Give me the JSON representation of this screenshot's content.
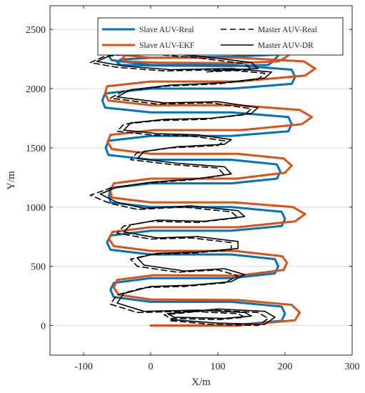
{
  "chart_data": {
    "type": "line",
    "xlabel": "X/m",
    "ylabel": "Y/m",
    "xlim": [
      -150,
      300
    ],
    "ylim": [
      -250,
      2700
    ],
    "xticks": [
      -100,
      0,
      100,
      200,
      300
    ],
    "yticks": [
      0,
      500,
      1000,
      1500,
      2000,
      2500
    ],
    "grid": "horizontal",
    "legend_position": "top-right",
    "legend": [
      "Slave AUV-Real",
      "Master AUV-Real",
      "Slave AUV-EKF",
      "Master AUV-DR"
    ],
    "series": [
      {
        "name": "Slave AUV-Real",
        "color": "#0072BD",
        "style": "solid-thick",
        "x": [
          0,
          120,
          195,
          200,
          195,
          120,
          0,
          -55,
          -60,
          -55,
          0,
          120,
          185,
          190,
          185,
          120,
          0,
          -60,
          -65,
          -60,
          0,
          120,
          195,
          200,
          195,
          120,
          0,
          -60,
          -62,
          -60,
          0,
          120,
          188,
          193,
          188,
          120,
          0,
          -63,
          -67,
          -63,
          0,
          120,
          205,
          210,
          205,
          120,
          0,
          -68,
          -72,
          -68,
          0,
          120,
          210,
          215,
          210,
          120,
          0,
          -58,
          -63,
          -58,
          0,
          120,
          200,
          205,
          200,
          120,
          0,
          -45,
          -50,
          -45,
          0,
          120,
          175,
          180,
          185,
          190,
          197
        ],
        "y": [
          0,
          0,
          40,
          100,
          160,
          200,
          200,
          240,
          300,
          360,
          400,
          400,
          440,
          500,
          560,
          600,
          600,
          640,
          700,
          760,
          800,
          800,
          840,
          900,
          960,
          1000,
          1000,
          1040,
          1100,
          1160,
          1200,
          1200,
          1240,
          1300,
          1360,
          1400,
          1400,
          1440,
          1500,
          1560,
          1600,
          1600,
          1640,
          1700,
          1760,
          1800,
          1800,
          1840,
          1900,
          1960,
          2000,
          2000,
          2040,
          2100,
          2160,
          2200,
          2200,
          2240,
          2280,
          2320,
          2350,
          2350,
          2330,
          2310,
          2290,
          2270,
          2260,
          2245,
          2220,
          2200,
          2195,
          2190,
          2200,
          2220,
          2250,
          2280,
          2310
        ]
      },
      {
        "name": "Slave AUV-EKF",
        "color": "#D95319",
        "style": "solid-thick",
        "x": [
          0,
          130,
          215,
          222,
          210,
          130,
          0,
          -48,
          -55,
          -50,
          5,
          130,
          198,
          203,
          196,
          125,
          0,
          -55,
          -62,
          -57,
          0,
          130,
          215,
          230,
          212,
          125,
          0,
          -58,
          -60,
          -55,
          0,
          128,
          200,
          210,
          198,
          130,
          0,
          -58,
          -64,
          -60,
          5,
          135,
          225,
          240,
          222,
          128,
          0,
          -63,
          -68,
          -65,
          0,
          130,
          230,
          245,
          228,
          130,
          0,
          -52,
          -58,
          -52,
          0,
          130,
          225,
          238,
          220,
          125,
          0,
          -38,
          -43,
          -38,
          10,
          130,
          190,
          200,
          210
        ],
        "y": [
          0,
          0,
          45,
          110,
          175,
          215,
          220,
          260,
          320,
          385,
          425,
          420,
          470,
          530,
          585,
          630,
          630,
          670,
          730,
          790,
          830,
          830,
          880,
          940,
          1000,
          1040,
          1040,
          1080,
          1140,
          1200,
          1240,
          1240,
          1290,
          1350,
          1410,
          1450,
          1450,
          1490,
          1550,
          1610,
          1650,
          1650,
          1700,
          1760,
          1820,
          1860,
          1860,
          1900,
          1960,
          2020,
          2060,
          2060,
          2110,
          2170,
          2230,
          2260,
          2260,
          2290,
          2330,
          2370,
          2400,
          2400,
          2390,
          2370,
          2340,
          2320,
          2300,
          2280,
          2250,
          2230,
          2220,
          2215,
          2230,
          2260,
          2300
        ]
      },
      {
        "name": "Master AUV-Real",
        "color": "#000000",
        "style": "dashed",
        "x": [
          30,
          90,
          160,
          175,
          160,
          90,
          20,
          30,
          100,
          140,
          130,
          60,
          -20,
          -60,
          -50,
          -10,
          50,
          110,
          130,
          100,
          40,
          -20,
          -30,
          0,
          60,
          120,
          120,
          60,
          0,
          -50,
          -40,
          0,
          70,
          130,
          120,
          50,
          -20,
          -60,
          -90,
          -60,
          -10,
          60,
          110,
          100,
          30,
          -30,
          -20,
          30,
          100,
          110,
          60,
          0,
          -50,
          -40,
          10,
          80,
          140,
          150,
          90,
          10,
          -60,
          -40,
          20,
          100,
          160,
          170,
          110,
          20,
          -50,
          -90,
          -70,
          -20,
          70,
          140,
          150,
          80
        ],
        "y": [
          40,
          10,
          0,
          60,
          110,
          130,
          90,
          60,
          50,
          70,
          100,
          120,
          110,
          180,
          260,
          320,
          330,
          360,
          420,
          470,
          450,
          500,
          560,
          600,
          610,
          640,
          700,
          740,
          730,
          780,
          840,
          880,
          870,
          910,
          960,
          1000,
          980,
          1030,
          1100,
          1160,
          1200,
          1230,
          1270,
          1330,
          1360,
          1400,
          1460,
          1500,
          1520,
          1560,
          1600,
          1610,
          1640,
          1700,
          1730,
          1740,
          1780,
          1830,
          1880,
          1870,
          1920,
          1980,
          2020,
          2040,
          2080,
          2130,
          2160,
          2150,
          2180,
          2220,
          2270,
          2300,
          2260,
          2210,
          2160,
          2140
        ]
      },
      {
        "name": "Master AUV-DR",
        "color": "#000000",
        "style": "solid",
        "x": [
          30,
          100,
          170,
          185,
          170,
          100,
          25,
          35,
          110,
          150,
          140,
          70,
          -10,
          -50,
          -40,
          0,
          60,
          120,
          140,
          110,
          50,
          -10,
          -20,
          10,
          70,
          130,
          130,
          70,
          10,
          -40,
          -30,
          10,
          80,
          140,
          130,
          60,
          -10,
          -50,
          -75,
          -50,
          0,
          70,
          120,
          110,
          40,
          -20,
          -10,
          40,
          110,
          120,
          70,
          10,
          -40,
          -30,
          20,
          90,
          150,
          160,
          100,
          20,
          -50,
          -30,
          30,
          110,
          170,
          180,
          120,
          30,
          -40,
          -80,
          -60,
          -10,
          80,
          150,
          160,
          90
        ],
        "y": [
          50,
          20,
          10,
          70,
          120,
          140,
          100,
          70,
          60,
          80,
          110,
          130,
          120,
          190,
          270,
          330,
          340,
          370,
          430,
          480,
          460,
          510,
          570,
          610,
          620,
          650,
          710,
          750,
          740,
          790,
          850,
          890,
          880,
          920,
          970,
          1010,
          990,
          1040,
          1110,
          1170,
          1210,
          1240,
          1280,
          1340,
          1370,
          1410,
          1470,
          1510,
          1530,
          1570,
          1610,
          1620,
          1650,
          1710,
          1740,
          1750,
          1790,
          1840,
          1890,
          1880,
          1930,
          1990,
          2030,
          2050,
          2090,
          2140,
          2170,
          2160,
          2190,
          2230,
          2280,
          2310,
          2270,
          2220,
          2170,
          2150
        ]
      }
    ]
  }
}
